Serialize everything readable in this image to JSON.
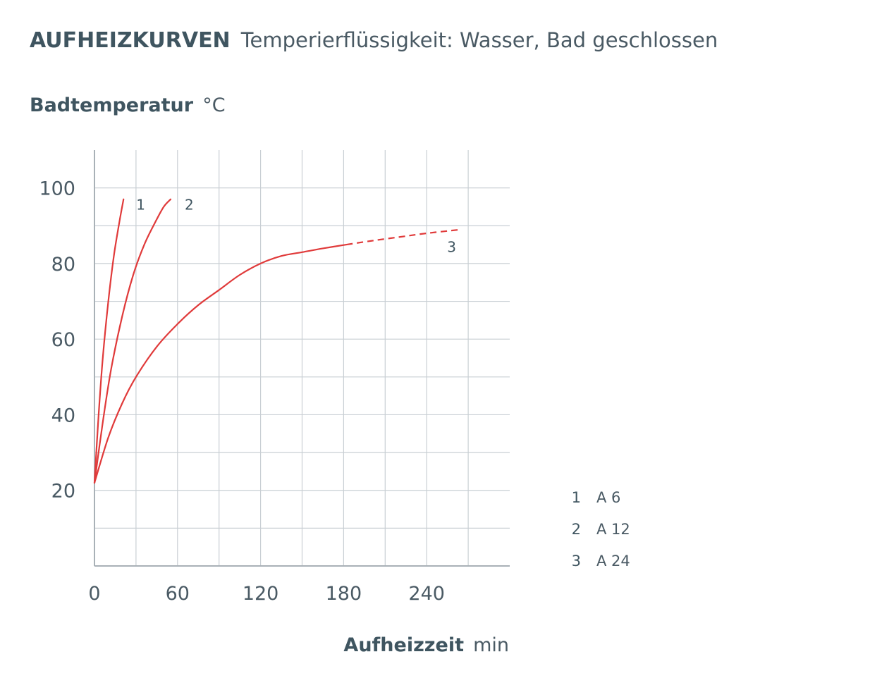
{
  "chart_data": {
    "type": "line",
    "title_main": "AUFHEIZKURVEN",
    "title_sub": "Temperierflüssigkeit: Wasser, Bad geschlossen",
    "ylabel": "Badtemperatur",
    "ylabel_unit": "°C",
    "xlabel": "Aufheizzeit",
    "xlabel_unit": "min",
    "xlim": [
      0,
      300
    ],
    "ylim": [
      0,
      110
    ],
    "x_ticks": [
      0,
      60,
      120,
      180,
      240
    ],
    "y_ticks": [
      20,
      40,
      60,
      80,
      100
    ],
    "grid": true,
    "series_color": "#e03a3a",
    "grid_color": "#c9cfd4",
    "axis_color": "#a9b1b7",
    "series": [
      {
        "label": "1",
        "points": [
          [
            0,
            22
          ],
          [
            3,
            40
          ],
          [
            6,
            55
          ],
          [
            10,
            70
          ],
          [
            14,
            82
          ],
          [
            18,
            91
          ],
          [
            21,
            97
          ]
        ],
        "dashed_from": null
      },
      {
        "label": "2",
        "points": [
          [
            0,
            22
          ],
          [
            6,
            38
          ],
          [
            12,
            52
          ],
          [
            20,
            66
          ],
          [
            28,
            77
          ],
          [
            36,
            85
          ],
          [
            44,
            91
          ],
          [
            50,
            95
          ],
          [
            55,
            97
          ]
        ],
        "dashed_from": null
      },
      {
        "label": "3",
        "points": [
          [
            0,
            22
          ],
          [
            10,
            34
          ],
          [
            20,
            43
          ],
          [
            30,
            50
          ],
          [
            45,
            58
          ],
          [
            60,
            64
          ],
          [
            75,
            69
          ],
          [
            90,
            73
          ],
          [
            105,
            77
          ],
          [
            120,
            80
          ],
          [
            135,
            82
          ],
          [
            150,
            83
          ],
          [
            165,
            84
          ],
          [
            182,
            85
          ],
          [
            200,
            86
          ],
          [
            220,
            87
          ],
          [
            240,
            88
          ],
          [
            265,
            89
          ]
        ],
        "dashed_from": 182
      }
    ],
    "legend": [
      {
        "num": "1",
        "text": "A 6"
      },
      {
        "num": "2",
        "text": "A 12"
      },
      {
        "num": "3",
        "text": "A 24"
      }
    ]
  }
}
